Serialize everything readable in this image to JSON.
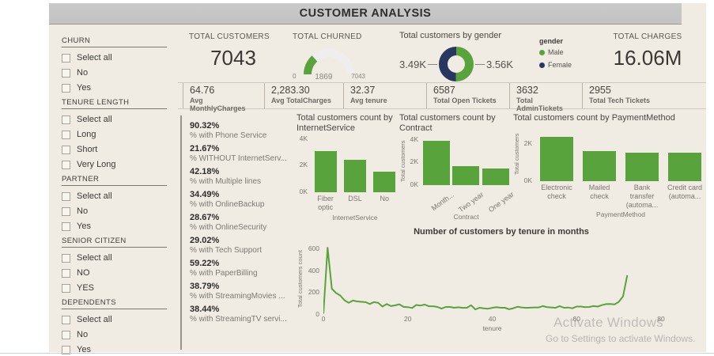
{
  "header": {
    "title": "CUSTOMER ANALYSIS"
  },
  "sidebar": {
    "sections": [
      {
        "title": "CHURN",
        "items": [
          "Select all",
          "No",
          "Yes"
        ]
      },
      {
        "title": "TENURE LENGTH",
        "items": [
          "Select all",
          "Long",
          "Short",
          "Very Long"
        ]
      },
      {
        "title": "PARTNER",
        "items": [
          "Select all",
          "No",
          "Yes"
        ]
      },
      {
        "title": "SENIOR CITIZEN",
        "items": [
          "Select all",
          "NO",
          "YES"
        ]
      },
      {
        "title": "DEPENDENTS",
        "items": [
          "Select all",
          "No",
          "Yes"
        ]
      }
    ]
  },
  "kpis": {
    "total_customers": {
      "label": "TOTAL CUSTOMERS",
      "value": "7043"
    },
    "total_churned": {
      "label": "TOTAL CHURNED",
      "min_label": "0",
      "value": "1869",
      "max_label": "7043"
    },
    "gender": {
      "title": "Total customers by gender",
      "left_value": "3.49K",
      "right_value": "3.56K",
      "legend_title": "gender",
      "legend": [
        {
          "label": "Male",
          "color": "#58A33C"
        },
        {
          "label": "Female",
          "color": "#28375F"
        }
      ]
    },
    "total_charges": {
      "label": "TOTAL CHARGES",
      "value": "16.06M"
    }
  },
  "stats": [
    {
      "value": "64.76",
      "label": "Avg MonthlyCharges"
    },
    {
      "value": "2,283.30",
      "label": "Avg TotalCharges"
    },
    {
      "value": "32.37",
      "label": "Avg tenure"
    },
    {
      "value": "6587",
      "label": "Total Open Tickets"
    },
    {
      "value": "3632",
      "label": "Total AdminTickets"
    },
    {
      "value": "2955",
      "label": "Total Tech Tickets"
    }
  ],
  "percent_stats": [
    {
      "value": "90.32%",
      "label": "% with Phone Service"
    },
    {
      "value": "21.67%",
      "label": "% WITHOUT InternetServ..."
    },
    {
      "value": "42.18%",
      "label": "% with Multiple lines"
    },
    {
      "value": "34.49%",
      "label": "% with OnlineBackup"
    },
    {
      "value": "28.67%",
      "label": "% with OnlineSecurity"
    },
    {
      "value": "29.02%",
      "label": "% with Tech Support"
    },
    {
      "value": "59.22%",
      "label": "% with PaperBilling"
    },
    {
      "value": "38.79%",
      "label": "% with StreamingMovies ..."
    },
    {
      "value": "38.44%",
      "label": "% with StreamingTV servi..."
    }
  ],
  "chart_data": [
    {
      "id": "internet-service",
      "type": "bar",
      "title": "Total customers count by InternetService",
      "xlabel": "InternetService",
      "ylabel": "Total customers count",
      "categories": [
        "Fiber optic",
        "DSL",
        "No"
      ],
      "values": [
        3100,
        2420,
        1530
      ],
      "ylim": [
        0,
        4100
      ],
      "yticks": [
        {
          "label": "4K",
          "value": 4000
        },
        {
          "label": "2K",
          "value": 2000
        },
        {
          "label": "0K",
          "value": 0
        }
      ],
      "color": "#58A33C"
    },
    {
      "id": "contract",
      "type": "bar",
      "title": "Total customers count by Contract",
      "xlabel": "Contract",
      "ylabel": "Total customers co...",
      "categories": [
        "Month...",
        "Two year",
        "One year"
      ],
      "values": [
        3900,
        1700,
        1480
      ],
      "ylim": [
        0,
        4200
      ],
      "yticks": [
        {
          "label": "4K",
          "value": 4000
        },
        {
          "label": "2K",
          "value": 2000
        },
        {
          "label": "0K",
          "value": 0
        }
      ],
      "color": "#58A33C"
    },
    {
      "id": "payment-method",
      "type": "bar",
      "title": "Total customers count by PaymentMethod",
      "xlabel": "PaymentMethod",
      "ylabel": "Total customers count",
      "categories": [
        "Electronic check",
        "Mailed check",
        "Bank transfer (automa...",
        "Credit card (automa..."
      ],
      "values": [
        2370,
        1600,
        1540,
        1520
      ],
      "ylim": [
        0,
        2900
      ],
      "yticks": [
        {
          "label": "2K",
          "value": 2000
        },
        {
          "label": "0K",
          "value": 0
        }
      ],
      "color": "#58A33C"
    },
    {
      "id": "tenure-line",
      "type": "line",
      "title": "Number of customers by tenure in months",
      "xlabel": "tenure",
      "ylabel": "Total customers count",
      "xlim": [
        0,
        80
      ],
      "ylim": [
        0,
        650
      ],
      "xticks": [
        0,
        20,
        40,
        60,
        80
      ],
      "yticks": [
        0,
        200,
        400,
        600
      ],
      "x_is_index": true,
      "values": [
        11,
        613,
        238,
        200,
        176,
        133,
        110,
        131,
        123,
        119,
        116,
        99,
        117,
        109,
        76,
        99,
        80,
        87,
        97,
        73,
        71,
        63,
        90,
        85,
        94,
        79,
        79,
        72,
        57,
        72,
        72,
        65,
        69,
        64,
        65,
        88,
        50,
        65,
        59,
        56,
        64,
        70,
        65,
        65,
        51,
        61,
        74,
        68,
        64,
        66,
        68,
        68,
        80,
        70,
        68,
        64,
        80,
        65,
        67,
        60,
        76,
        76,
        70,
        72,
        80,
        76,
        89,
        98,
        100,
        95,
        119,
        170,
        362
      ],
      "color": "#58A33C"
    }
  ],
  "watermark": {
    "line1": "Activate Windows",
    "line2": "Go to Settings to activate Windows."
  },
  "colors": {
    "green": "#58A33C",
    "navy": "#28375F",
    "background": "#F1ECE3",
    "header_gray": "#C7C7C7",
    "text_dark": "#3E3B37",
    "text_gray": "#7A7670"
  }
}
